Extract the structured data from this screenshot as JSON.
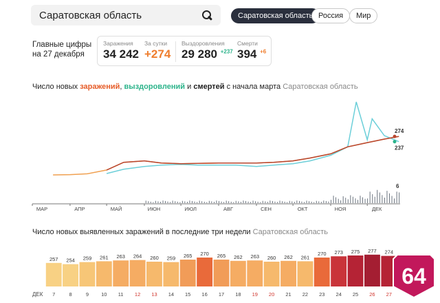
{
  "search": {
    "value": "Саратовская область"
  },
  "region_tabs": [
    {
      "label": "Саратовская область",
      "active": true
    },
    {
      "label": "Россия",
      "active": false
    },
    {
      "label": "Мир",
      "active": false
    }
  ],
  "main_figures": {
    "label_line1": "Главные цифры",
    "label_line2": "на 27 декабря",
    "infections": {
      "label": "Заражения",
      "value": "34 242"
    },
    "daily": {
      "label": "За сутки",
      "value": "+274"
    },
    "recovered": {
      "label": "Выздоровления",
      "value": "29 280",
      "delta": "+237"
    },
    "deaths": {
      "label": "Смерти",
      "value": "394",
      "delta": "+6"
    }
  },
  "chart1": {
    "title_prefix": "Число новых ",
    "title_infections": "заражений",
    "title_comma": ", ",
    "title_recoveries": "выздоровлений",
    "title_and": " и ",
    "title_deaths": "смертей",
    "title_suffix": " с начала марта ",
    "title_region": "Саратовская область",
    "end_label_infections": "274",
    "end_label_recoveries": "237",
    "end_label_deaths": "6",
    "months": [
      "МАР",
      "АПР",
      "МАЙ",
      "ИЮН",
      "ИЮЛ",
      "АВГ",
      "СЕН",
      "ОКТ",
      "НОЯ",
      "ДЕК"
    ]
  },
  "chart2": {
    "title_prefix": "Число новых выявленных заражений в последние три недели ",
    "title_region": "Саратовская область",
    "month_label": "ДЕК"
  },
  "chart_data": [
    {
      "type": "line",
      "series": [
        {
          "name": "заражения",
          "color": "#f0a050",
          "x": [
            "18 мар",
            "1 апр",
            "15 апр",
            "1 мая",
            "15 мая",
            "1 июн",
            "15 июн",
            "1 июл",
            "15 июл",
            "1 авг",
            "15 авг",
            "1 сен",
            "15 сен",
            "1 окт",
            "15 окт",
            "1 ноя",
            "15 ноя",
            "1 дек",
            "15 дек",
            "27 дек"
          ],
          "values": [
            0,
            2,
            8,
            35,
            90,
            100,
            85,
            80,
            82,
            85,
            85,
            85,
            90,
            100,
            120,
            150,
            200,
            230,
            255,
            274
          ]
        },
        {
          "name": "выздоровления",
          "color": "#6ccfd9",
          "x": [
            "1 мая",
            "15 мая",
            "1 июн",
            "15 июн",
            "1 июл",
            "15 июл",
            "1 авг",
            "15 авг",
            "1 сен",
            "15 сен",
            "1 окт",
            "15 окт",
            "1 ноя",
            "15 ноя",
            "22 ноя",
            "1 дек",
            "5 дек",
            "15 дек",
            "27 дек"
          ],
          "values": [
            10,
            40,
            60,
            70,
            75,
            70,
            70,
            70,
            60,
            70,
            80,
            100,
            140,
            200,
            520,
            250,
            400,
            280,
            237
          ]
        },
        {
          "name": "смерти",
          "color": "#5a6470",
          "x": [
            "1 мая",
            "1 июн",
            "1 июл",
            "1 авг",
            "1 сен",
            "1 окт",
            "1 ноя",
            "1 дек",
            "27 дек"
          ],
          "values": [
            0,
            1,
            1,
            1,
            1,
            1,
            3,
            5,
            6
          ]
        }
      ],
      "xlabel": "",
      "ylabel": ""
    },
    {
      "type": "bar",
      "categories": [
        "7",
        "8",
        "9",
        "10",
        "11",
        "12",
        "13",
        "14",
        "15",
        "16",
        "17",
        "18",
        "19",
        "20",
        "21",
        "22",
        "23",
        "24",
        "25",
        "26",
        "27"
      ],
      "weekend_categories": [
        "12",
        "13",
        "19",
        "20",
        "26",
        "27"
      ],
      "values": [
        257,
        254,
        259,
        261,
        263,
        264,
        260,
        259,
        265,
        270,
        265,
        262,
        263,
        260,
        262,
        261,
        270,
        273,
        275,
        277,
        274
      ],
      "colors": [
        "#f8d184",
        "#f8d184",
        "#f7c677",
        "#f6b96c",
        "#f5ac63",
        "#f5ac63",
        "#f6b96c",
        "#f6b96c",
        "#f19c58",
        "#e96a3a",
        "#f19c58",
        "#f5ac63",
        "#f5ac63",
        "#f6b96c",
        "#f5ac63",
        "#f6b96c",
        "#e96a3a",
        "#c9343a",
        "#b52335",
        "#a41e32",
        "#b52335"
      ],
      "xlabel": "",
      "ylabel": ""
    }
  ],
  "logo": {
    "text": "64"
  }
}
